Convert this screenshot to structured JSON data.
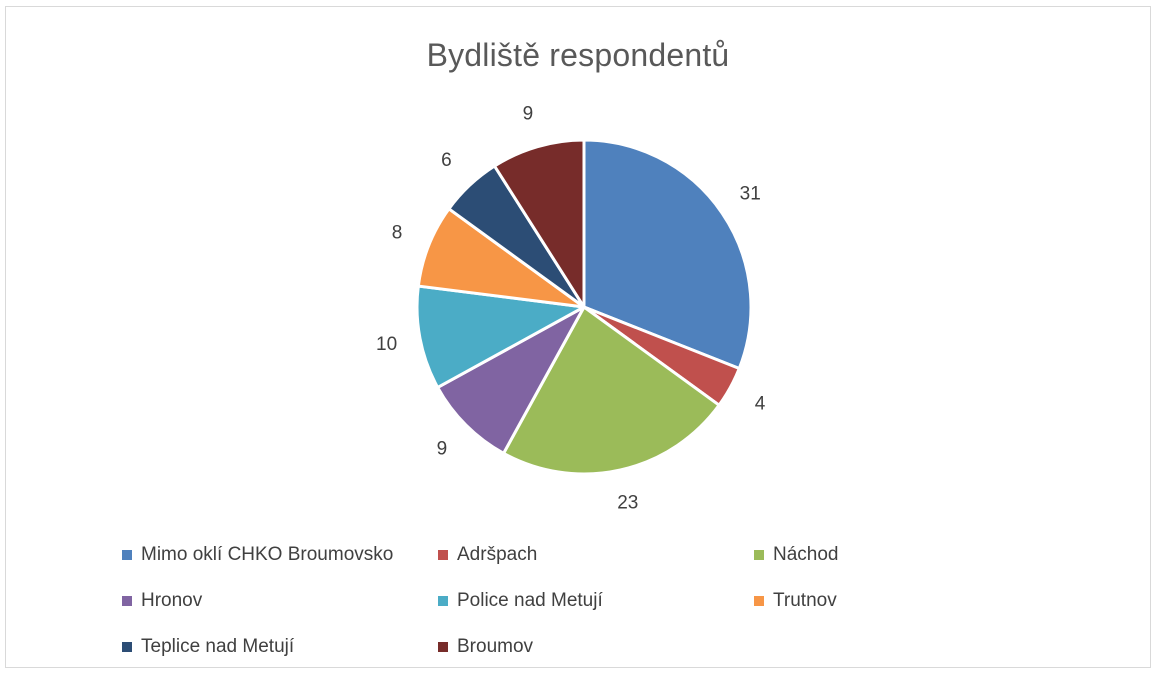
{
  "chart_data": {
    "type": "pie",
    "title": "Bydliště respondentů",
    "categories": [
      "Mimo oklí CHKO Broumovsko",
      "Adršpach",
      "Náchod",
      "Hronov",
      "Police nad Metují",
      "Trutnov",
      "Teplice nad Metují",
      "Broumov"
    ],
    "values": [
      31,
      4,
      23,
      9,
      10,
      8,
      6,
      9
    ],
    "colors": [
      "#4F81BD",
      "#C0504D",
      "#9BBB59",
      "#8064A2",
      "#4BACC6",
      "#F79646",
      "#2C4D75",
      "#772C2A"
    ],
    "data_labels": [
      "31",
      "4",
      "23",
      "9",
      "10",
      "8",
      "6",
      "9"
    ],
    "legend_position": "bottom"
  }
}
